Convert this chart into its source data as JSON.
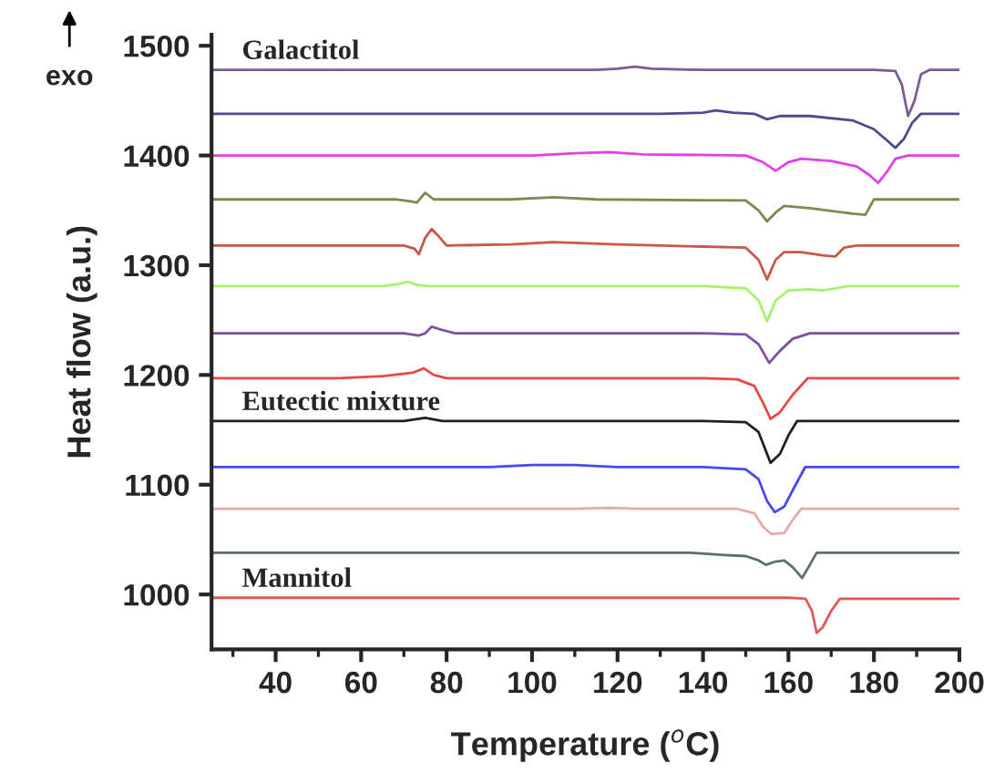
{
  "chart_data": {
    "type": "line",
    "xlabel": "Temperature ($^{o}$C)",
    "ylabel": "Heat flow (a.u.)",
    "annotations": [
      "exo"
    ],
    "xlim": [
      25,
      200
    ],
    "ylim": [
      950,
      1510
    ],
    "xticks": [
      {
        "value": 30,
        "label": null
      },
      40,
      {
        "value": 50,
        "label": null
      },
      60,
      {
        "value": 70,
        "label": null
      },
      80,
      {
        "value": 90,
        "label": null
      },
      100,
      {
        "value": 110,
        "label": null
      },
      120,
      {
        "value": 130,
        "label": null
      },
      140,
      {
        "value": 150,
        "label": null
      },
      160,
      {
        "value": 170,
        "label": null
      },
      180,
      {
        "value": 190,
        "label": null
      },
      200
    ],
    "yticks": [
      1000,
      1100,
      1200,
      1300,
      1400,
      1500
    ],
    "grid": false,
    "legend": false,
    "marker": "none",
    "line_style": "solid",
    "series": [
      {
        "name": "Galactitol",
        "color": "#7b5c8e",
        "x": [
          25,
          115,
          120,
          124,
          128,
          140,
          180,
          185,
          186.5,
          188,
          189.5,
          191,
          193,
          200
        ],
        "values": [
          1478,
          1478,
          1479,
          1481,
          1479,
          1478,
          1478,
          1477,
          1465,
          1436,
          1450,
          1474,
          1478,
          1478
        ]
      },
      {
        "color": "#4c4c8c",
        "x": [
          25,
          130,
          140,
          143,
          147,
          152,
          155,
          158,
          165,
          175,
          180,
          183,
          185,
          187,
          189,
          191,
          200
        ],
        "values": [
          1438,
          1438,
          1439,
          1441,
          1439,
          1438,
          1433,
          1436,
          1436,
          1432,
          1424,
          1414,
          1407,
          1415,
          1430,
          1438,
          1438
        ]
      },
      {
        "color": "#e040e8",
        "x": [
          25,
          100,
          110,
          118,
          126,
          150,
          154,
          157,
          160,
          163,
          170,
          176,
          179,
          181,
          183,
          185,
          188,
          200
        ],
        "values": [
          1400,
          1400,
          1402,
          1403,
          1401,
          1400,
          1394,
          1386,
          1394,
          1397,
          1395,
          1390,
          1382,
          1375,
          1385,
          1397,
          1400,
          1400
        ]
      },
      {
        "color": "#7c8c50",
        "x": [
          25,
          68,
          72,
          73,
          75,
          77,
          80,
          95,
          105,
          115,
          150,
          153,
          155,
          157,
          159,
          165,
          175,
          178,
          180,
          200
        ],
        "values": [
          1360,
          1360,
          1358,
          1357,
          1366,
          1360,
          1360,
          1360,
          1362,
          1360,
          1359,
          1350,
          1340,
          1348,
          1354,
          1352,
          1347,
          1346,
          1360,
          1360
        ]
      },
      {
        "color": "#c85848",
        "x": [
          25,
          70,
          72.5,
          73.5,
          75,
          76.5,
          78,
          80,
          95,
          105,
          120,
          150,
          153,
          155,
          157,
          159,
          163,
          168,
          171,
          173,
          176,
          200
        ],
        "values": [
          1318,
          1318,
          1315,
          1310,
          1325,
          1333,
          1327,
          1318,
          1319,
          1321,
          1319,
          1316,
          1305,
          1287,
          1305,
          1312,
          1312,
          1309,
          1308,
          1316,
          1318,
          1318
        ]
      },
      {
        "color": "#a8f070",
        "x": [
          25,
          65,
          69,
          71,
          73,
          76,
          140,
          150,
          153,
          155,
          157,
          160,
          165,
          168,
          171,
          174,
          200
        ],
        "values": [
          1281,
          1281,
          1283,
          1285,
          1282,
          1281,
          1281,
          1279,
          1268,
          1249,
          1268,
          1277,
          1278,
          1277,
          1279,
          1281,
          1281
        ]
      },
      {
        "color": "#8050a0",
        "x": [
          25,
          70,
          73.5,
          75,
          76.5,
          79,
          82,
          140,
          150,
          153,
          155.5,
          158,
          161,
          165,
          200
        ],
        "values": [
          1238,
          1238,
          1236,
          1238,
          1244,
          1241,
          1238,
          1238,
          1237,
          1228,
          1211,
          1222,
          1233,
          1238,
          1238
        ]
      },
      {
        "color": "#e84848",
        "x": [
          25,
          55,
          65,
          72,
          74.7,
          77,
          80,
          140,
          148,
          152,
          154,
          155.8,
          158,
          161,
          164.5,
          200
        ],
        "values": [
          1197,
          1197,
          1199,
          1202,
          1206,
          1200,
          1197,
          1197,
          1196,
          1190,
          1175,
          1160,
          1166,
          1182,
          1197,
          1197
        ]
      },
      {
        "name": "Eutectic mixture",
        "color": "#202020",
        "x": [
          25,
          70,
          75,
          79,
          140,
          150,
          153,
          155.8,
          158,
          160,
          162,
          200
        ],
        "values": [
          1158,
          1158,
          1161,
          1158,
          1158,
          1157,
          1148,
          1120,
          1128,
          1145,
          1158,
          1158
        ]
      },
      {
        "color": "#4848f0",
        "x": [
          25,
          90,
          100,
          110,
          120,
          140,
          150,
          153,
          155,
          156.8,
          159,
          161,
          163.9,
          200
        ],
        "values": [
          1116,
          1116,
          1118,
          1118,
          1116,
          1116,
          1114,
          1105,
          1085,
          1075,
          1080,
          1095,
          1116,
          1116
        ]
      },
      {
        "color": "#e8a8a8",
        "x": [
          25,
          110,
          118,
          125,
          148,
          152,
          154,
          156,
          159,
          161,
          163,
          200
        ],
        "values": [
          1078,
          1078,
          1079,
          1078,
          1078,
          1074,
          1062,
          1055,
          1056,
          1068,
          1078,
          1078
        ]
      },
      {
        "color": "#5a7070",
        "x": [
          25,
          137,
          145,
          150,
          153,
          154.7,
          157,
          159,
          161,
          163.2,
          165,
          166.6,
          200
        ],
        "values": [
          1038,
          1038,
          1036,
          1035,
          1031,
          1027,
          1030,
          1031,
          1025,
          1015,
          1027,
          1038,
          1038
        ]
      },
      {
        "name": "Mannitol",
        "color": "#e05858",
        "x": [
          25,
          160,
          164,
          165.5,
          166.6,
          168,
          170,
          172,
          200
        ],
        "values": [
          997,
          997,
          996,
          985,
          965,
          970,
          985,
          996,
          996
        ]
      }
    ]
  }
}
